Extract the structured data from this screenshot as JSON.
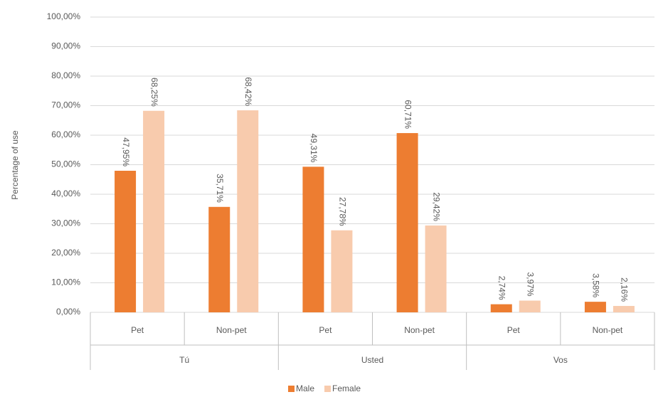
{
  "chart_data": {
    "type": "bar",
    "y_label": "Percentage of use",
    "categories": [
      "Pet",
      "Non-pet",
      "Pet",
      "Non-pet",
      "Pet",
      "Non-pet"
    ],
    "groups": [
      "Tú",
      "Usted",
      "Vos"
    ],
    "series": [
      {
        "name": "Male",
        "color": "#ed7d31",
        "values": [
          47.95,
          35.71,
          49.31,
          60.71,
          2.74,
          3.58
        ],
        "value_labels": [
          "47,95%",
          "35,71%",
          "49,31%",
          "60,71%",
          "2,74%",
          "3,58%"
        ]
      },
      {
        "name": "Female",
        "color": "#f8cbad",
        "values": [
          68.25,
          68.42,
          27.78,
          29.42,
          3.97,
          2.16
        ],
        "value_labels": [
          "68,25%",
          "68,42%",
          "27,78%",
          "29,42%",
          "3,97%",
          "2,16%"
        ]
      }
    ],
    "ylim": [
      0,
      100
    ],
    "yticks": [
      {
        "value": 0,
        "label": "0,00%"
      },
      {
        "value": 10,
        "label": "10,00%"
      },
      {
        "value": 20,
        "label": "20,00%"
      },
      {
        "value": 30,
        "label": "30,00%"
      },
      {
        "value": 40,
        "label": "40,00%"
      },
      {
        "value": 50,
        "label": "50,00%"
      },
      {
        "value": 60,
        "label": "60,00%"
      },
      {
        "value": 70,
        "label": "70,00%"
      },
      {
        "value": 80,
        "label": "80,00%"
      },
      {
        "value": 90,
        "label": "90,00%"
      },
      {
        "value": 100,
        "label": "100,00%"
      }
    ],
    "grid": true
  }
}
